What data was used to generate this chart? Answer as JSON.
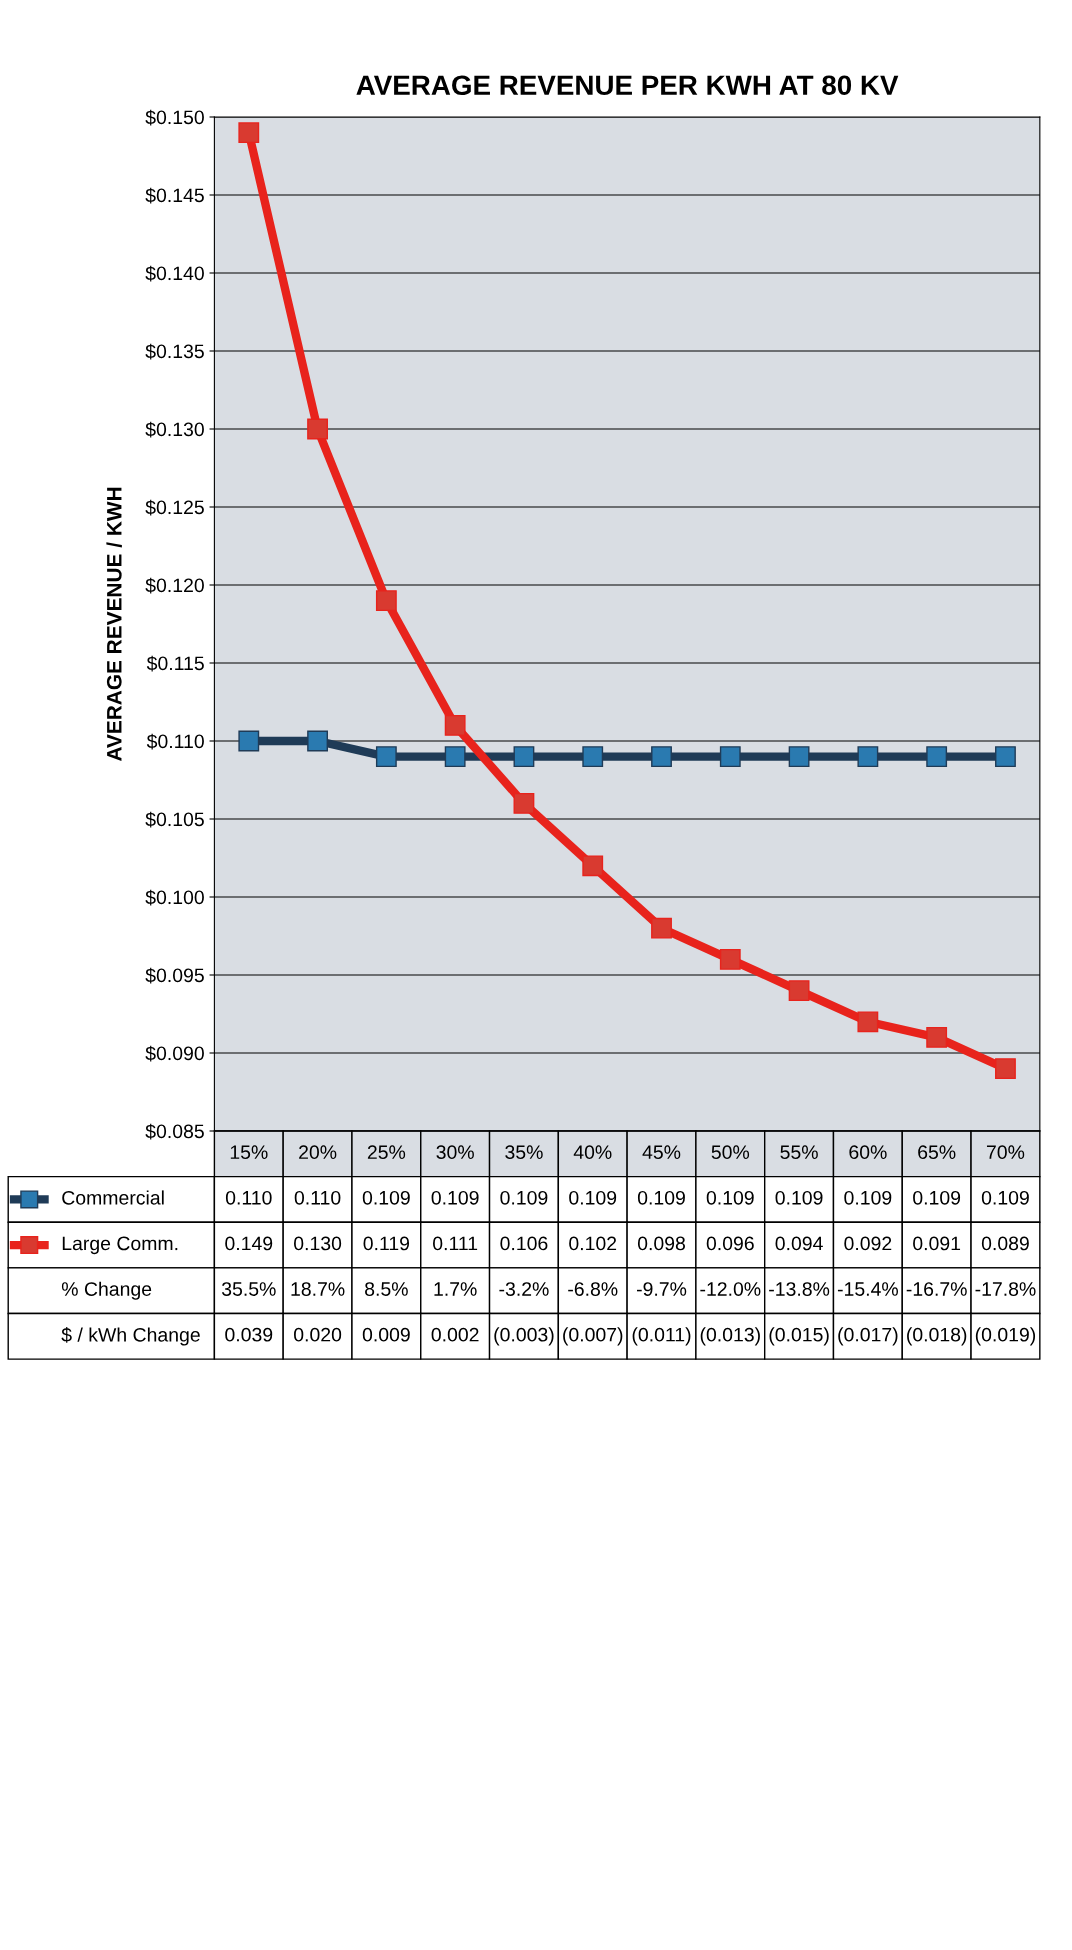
{
  "chart_data": {
    "type": "line",
    "title": "AVERAGE REVENUE PER KWH AT 80 KV",
    "ylabel": "AVERAGE REVENUE / KWH",
    "categories": [
      "15%",
      "20%",
      "25%",
      "30%",
      "35%",
      "40%",
      "45%",
      "50%",
      "55%",
      "60%",
      "65%",
      "70%"
    ],
    "series": [
      {
        "name": "Commercial",
        "color": "#1f3b57",
        "values": [
          0.11,
          0.11,
          0.109,
          0.109,
          0.109,
          0.109,
          0.109,
          0.109,
          0.109,
          0.109,
          0.109,
          0.109
        ],
        "value_labels": [
          "0.110",
          "0.110",
          "0.109",
          "0.109",
          "0.109",
          "0.109",
          "0.109",
          "0.109",
          "0.109",
          "0.109",
          "0.109",
          "0.109"
        ]
      },
      {
        "name": "Large Comm.",
        "color": "#e8231c",
        "values": [
          0.149,
          0.13,
          0.119,
          0.111,
          0.106,
          0.102,
          0.098,
          0.096,
          0.094,
          0.092,
          0.091,
          0.089
        ],
        "value_labels": [
          "0.149",
          "0.130",
          "0.119",
          "0.111",
          "0.106",
          "0.102",
          "0.098",
          "0.096",
          "0.094",
          "0.092",
          "0.091",
          "0.089"
        ]
      }
    ],
    "ylim": [
      0.085,
      0.15
    ],
    "yticks": [
      {
        "value": 0.085,
        "label": "$0.085"
      },
      {
        "value": 0.09,
        "label": "$0.090"
      },
      {
        "value": 0.095,
        "label": "$0.095"
      },
      {
        "value": 0.1,
        "label": "$0.100"
      },
      {
        "value": 0.105,
        "label": "$0.105"
      },
      {
        "value": 0.11,
        "label": "$0.110"
      },
      {
        "value": 0.115,
        "label": "$0.115"
      },
      {
        "value": 0.12,
        "label": "$0.120"
      },
      {
        "value": 0.125,
        "label": "$0.125"
      },
      {
        "value": 0.13,
        "label": "$0.130"
      },
      {
        "value": 0.135,
        "label": "$0.135"
      },
      {
        "value": 0.14,
        "label": "$0.140"
      },
      {
        "value": 0.145,
        "label": "$0.145"
      },
      {
        "value": 0.15,
        "label": "$0.150"
      }
    ],
    "grid": "y",
    "marker": "square",
    "line_style": "solid",
    "legend": "bottom",
    "annotations": [
      "% Change",
      "35.5%",
      "18.7%",
      "8.5%",
      "1.7%",
      "-3.2%",
      "-6.8%",
      "-9.7%",
      "-12.0%",
      "-13.8%",
      "-15.4%",
      "-16.7%",
      "-17.8%",
      "$ / kWh Change",
      "0.039",
      "0.020",
      "0.009",
      "0.002",
      "(0.003)",
      "(0.007)",
      "(0.011)",
      "(0.013)",
      "(0.015)",
      "(0.017)",
      "(0.018)",
      "(0.019)"
    ]
  }
}
